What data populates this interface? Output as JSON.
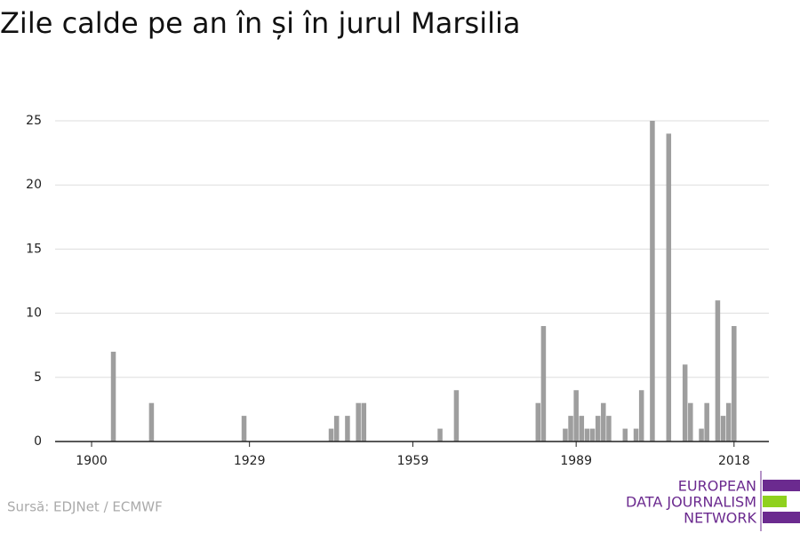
{
  "chart_data": {
    "type": "bar",
    "title": "Zile calde pe an în și în jurul Marsilia",
    "x": [
      1904,
      1911,
      1928,
      1944,
      1945,
      1947,
      1949,
      1950,
      1964,
      1967,
      1982,
      1983,
      1987,
      1988,
      1989,
      1990,
      1991,
      1992,
      1993,
      1994,
      1995,
      1998,
      2000,
      2001,
      2003,
      2006,
      2009,
      2010,
      2012,
      2013,
      2015,
      2016,
      2017,
      2018
    ],
    "values": [
      7,
      3,
      2,
      1,
      2,
      2,
      3,
      3,
      1,
      4,
      3,
      9,
      1,
      2,
      4,
      2,
      1,
      1,
      2,
      3,
      2,
      1,
      1,
      4,
      25,
      24,
      6,
      3,
      1,
      3,
      11,
      2,
      3,
      9
    ],
    "color": "#9e9e9e",
    "xlim": [
      1893.3,
      2024.4
    ],
    "xticks": [
      1900,
      1929,
      1959,
      1989,
      2018
    ],
    "ylim": [
      0,
      25
    ],
    "yticks": [
      0,
      5,
      10,
      15,
      20,
      25
    ],
    "grid": true
  },
  "source": "Sursă: EDJNet / ECMWF",
  "logo": [
    "EUROPEAN",
    "DATA JOURNALISM",
    "NETWORK"
  ]
}
